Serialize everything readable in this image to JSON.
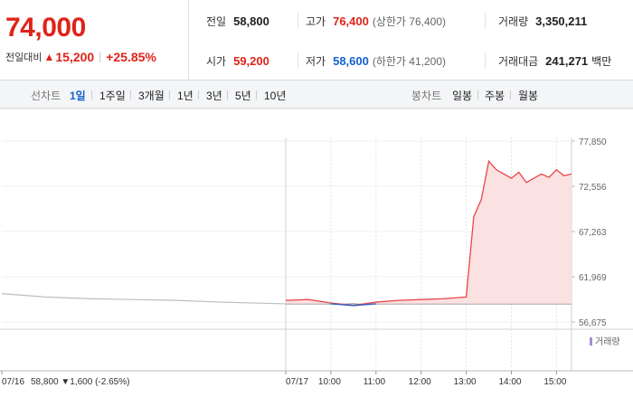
{
  "quote": {
    "price": "74,000",
    "change_label": "전일대비",
    "change_arrow": "▲",
    "change": "15,200",
    "change_pct": "+25.85%"
  },
  "stats": {
    "prev_label": "전일",
    "prev": "58,800",
    "high_label": "고가",
    "high": "76,400",
    "upper_limit": "(상한가 76,400)",
    "volume_label": "거래량",
    "volume": "3,350,211",
    "open_label": "시가",
    "open": "59,200",
    "low_label": "저가",
    "low": "58,600",
    "lower_limit": "(하한가 41,200)",
    "amount_label": "거래대금",
    "amount": "241,271",
    "amount_unit": "백만"
  },
  "tabs": {
    "line_chart": "선차트",
    "periods": [
      "1일",
      "1주일",
      "3개월",
      "1년",
      "3년",
      "5년",
      "10년"
    ],
    "selected": "1일",
    "candle_chart": "봉차트",
    "candle_periods": [
      "일봉",
      "주봉",
      "월봉"
    ]
  },
  "chart_data": {
    "type": "line",
    "y_ticks": [
      "77,850",
      "72,556",
      "67,263",
      "61,969",
      "56,675"
    ],
    "ylim": [
      56675,
      77850
    ],
    "x_labels": [
      "07/16",
      "07/17",
      "10:00",
      "11:00",
      "12:00",
      "13:00",
      "14:00",
      "15:00"
    ],
    "prev_day_note": "58,800 ▼1,600 (-2.65%)",
    "prev_day_date": "07/16",
    "volume_legend": "거래량",
    "prev_close": 58800,
    "series": [
      {
        "x": [
          "07/16 09:00",
          "07/16 10:00",
          "07/16 11:00",
          "07/16 12:00",
          "07/16 13:00",
          "07/16 14:00",
          "07/16 15:30"
        ],
        "values": [
          60000,
          59600,
          59400,
          59300,
          59200,
          59000,
          58800
        ]
      },
      {
        "x": [
          "09:00",
          "09:30",
          "10:00",
          "10:30",
          "11:00",
          "11:30",
          "12:00",
          "12:30",
          "13:00",
          "13:10",
          "13:20",
          "13:30",
          "13:40",
          "13:50",
          "14:00",
          "14:10",
          "14:20",
          "14:30",
          "14:40",
          "14:50",
          "15:00",
          "15:10",
          "15:20"
        ],
        "values": [
          59200,
          59300,
          58900,
          58600,
          59000,
          59200,
          59300,
          59400,
          59600,
          69000,
          71000,
          75500,
          74500,
          74000,
          73500,
          74200,
          73000,
          73500,
          74000,
          73600,
          74500,
          73800,
          74000
        ]
      }
    ],
    "colors": {
      "today_line": "#e8474a",
      "today_fill": "#fbe1e1",
      "prev_line": "#bdbdbd",
      "below_line": "#2b5fc9",
      "volume": "#a48fce"
    }
  }
}
